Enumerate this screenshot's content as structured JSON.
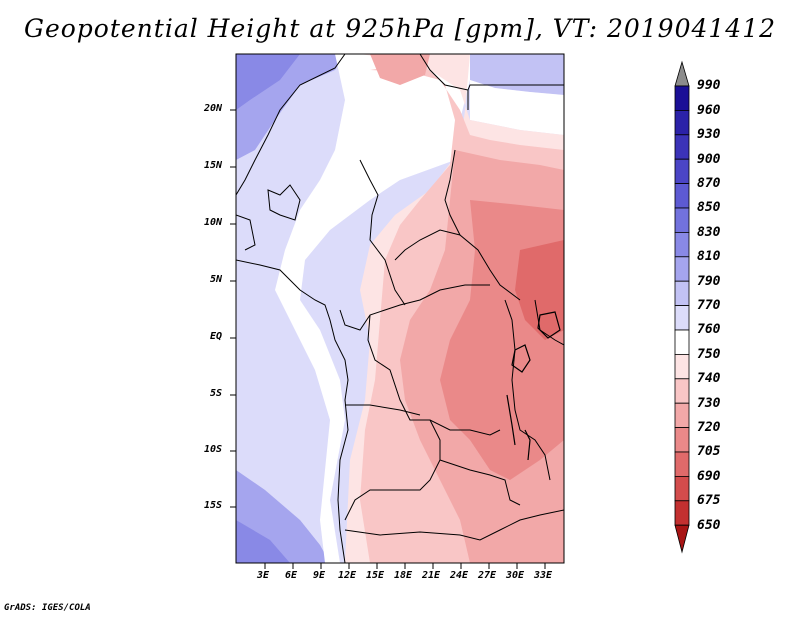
{
  "title": "Geopotential Height at 925hPa [gpm], VT: 2019041412",
  "credit": "GrADS: IGES/COLA",
  "map": {
    "lat_labels": [
      "20N",
      "15N",
      "10N",
      "5N",
      "EQ",
      "5S",
      "10S",
      "15S"
    ],
    "lon_labels": [
      "3E",
      "6E",
      "9E",
      "12E",
      "15E",
      "18E",
      "21E",
      "24E",
      "27E",
      "30E",
      "33E"
    ]
  },
  "colorbar": {
    "levels": [
      "990",
      "960",
      "930",
      "900",
      "870",
      "850",
      "830",
      "810",
      "790",
      "770",
      "760",
      "750",
      "740",
      "730",
      "720",
      "705",
      "690",
      "675",
      "650"
    ],
    "colors": [
      "#8c8c8c",
      "#1a0f96",
      "#2b22a8",
      "#3b33b8",
      "#4b45c6",
      "#5d5ad3",
      "#7272dd",
      "#8989e6",
      "#a5a5ee",
      "#c2c2f4",
      "#dcdcfa",
      "#ffffff",
      "#fde4e4",
      "#f9c6c6",
      "#f2a8a8",
      "#ea8989",
      "#e06a6a",
      "#d34c4c",
      "#c33030",
      "#a81414"
    ]
  }
}
